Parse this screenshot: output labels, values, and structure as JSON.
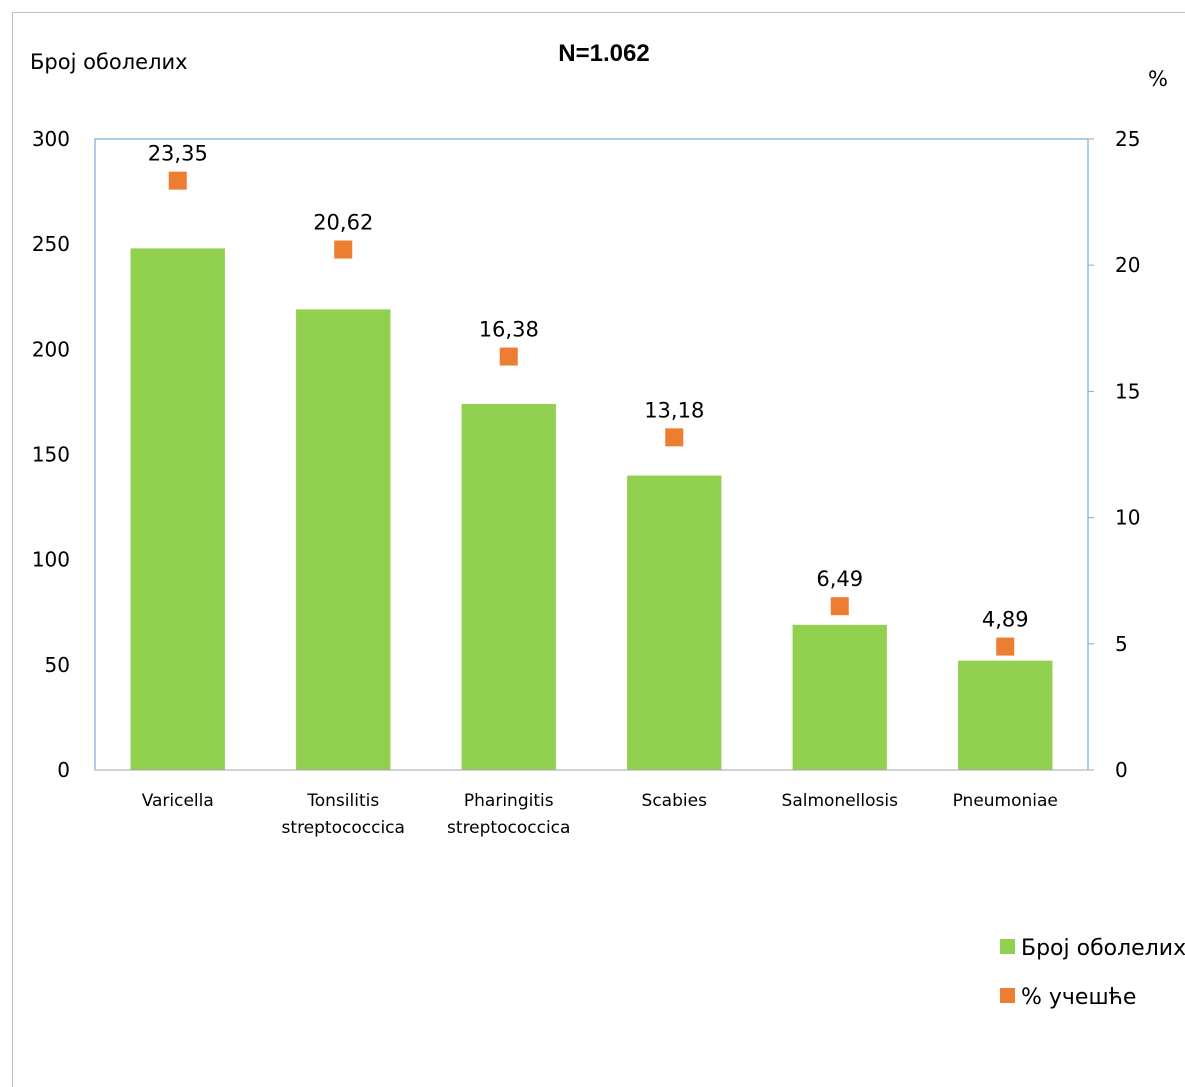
{
  "chart_data": {
    "type": "bar",
    "title": "N=1.062",
    "ylabel_left": "Број оболелих",
    "ylabel_right": "%",
    "categories": [
      [
        "Varicella"
      ],
      [
        "Tonsilitis",
        "streptococcica"
      ],
      [
        "Pharingitis",
        "streptococcica"
      ],
      [
        "Scabies"
      ],
      [
        "Salmonellosis"
      ],
      [
        "Pneumoniae"
      ]
    ],
    "ylim_left": [
      0,
      300
    ],
    "yticks_left": [
      "0",
      "50",
      "100",
      "150",
      "200",
      "250",
      "300"
    ],
    "ylim_right": [
      0,
      25
    ],
    "yticks_right": [
      "0",
      "5",
      "10",
      "15",
      "20",
      "25"
    ],
    "grid": false,
    "legend_position": "bottom-right",
    "series": [
      {
        "name": "Број оболелих",
        "type": "bar",
        "axis": "left",
        "color": "#92d050",
        "values": [
          248,
          219,
          174,
          140,
          69,
          52
        ]
      },
      {
        "name": "% учешће",
        "type": "marker",
        "axis": "right",
        "color": "#ed7d31",
        "values": [
          23.35,
          20.62,
          16.38,
          13.18,
          6.49,
          4.89
        ],
        "labels": [
          "23,35",
          "20,62",
          "16,38",
          "13,18",
          "6,49",
          "4,89"
        ]
      }
    ]
  }
}
